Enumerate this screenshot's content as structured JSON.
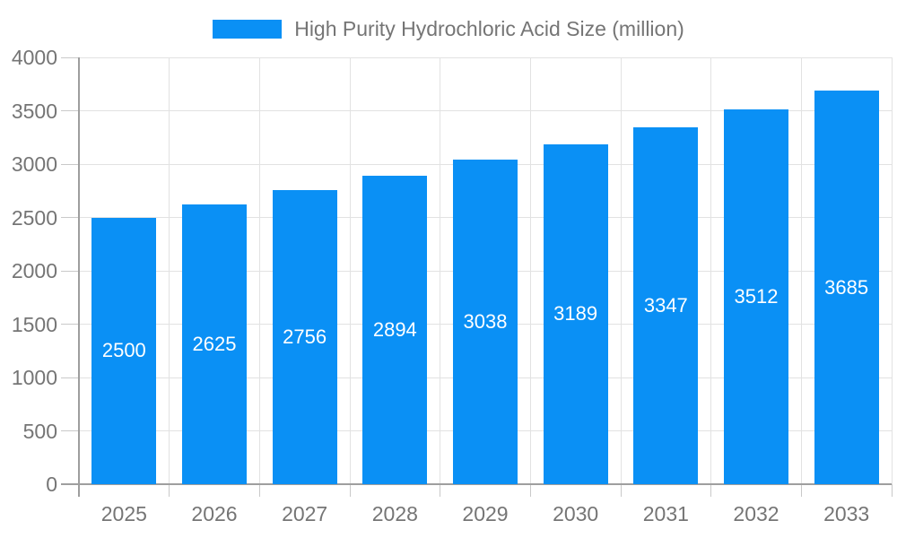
{
  "legend": {
    "label": "High Purity Hydrochloric Acid Size (million)",
    "swatch_color": "#0a90f5"
  },
  "chart_data": {
    "type": "bar",
    "title": "High Purity Hydrochloric Acid Size (million)",
    "categories": [
      "2025",
      "2026",
      "2027",
      "2028",
      "2029",
      "2030",
      "2031",
      "2032",
      "2033"
    ],
    "values": [
      2500,
      2625,
      2756,
      2894,
      3038,
      3189,
      3347,
      3512,
      3685
    ],
    "xlabel": "",
    "ylabel": "",
    "ylim": [
      0,
      4000
    ],
    "yticks": [
      0,
      500,
      1000,
      1500,
      2000,
      2500,
      3000,
      3500,
      4000
    ],
    "grid": true,
    "legend_position": "top-center",
    "bar_color": "#0a90f5",
    "value_label_color": "#ffffff",
    "axis_text_color": "#757575",
    "grid_color": "#e2e2e2",
    "axis_line_color": "#9e9e9e"
  }
}
